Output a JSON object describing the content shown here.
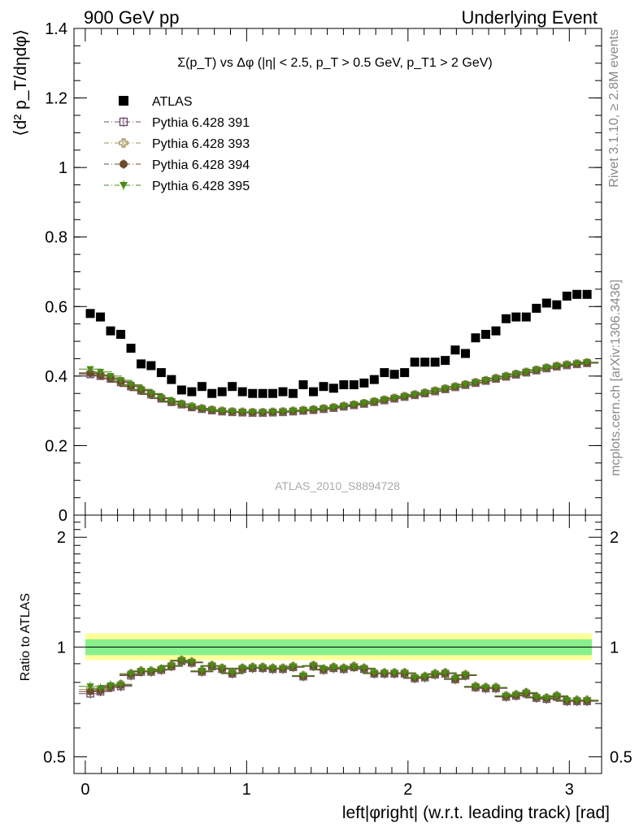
{
  "header": {
    "left": "900 GeV pp",
    "right": "Underlying Event"
  },
  "side_labels": {
    "rivet": "Rivet 3.1.10, ≥ 2.8M events",
    "mcplots": "mcplots.cern.ch [arXiv:1306.3436]"
  },
  "watermark": "ATLAS_2010_S8894728",
  "chart_data": [
    {
      "type": "scatter",
      "title": "Σ(p_T) vs Δφ (|η| < 2.5, p_T > 0.5 GeV, p_T1 > 2 GeV)",
      "ylabel": "⟨d² p_T/dηdφ⟩",
      "xlabel": "left|φright| (w.r.t. leading track) [rad]",
      "xlim": [
        -0.07,
        3.2
      ],
      "ylim": [
        0,
        1.4
      ],
      "yticks": [
        "0",
        "0.2",
        "0.4",
        "0.6",
        "0.8",
        "1",
        "1.2",
        "1.4"
      ],
      "legend_position": "top-left",
      "x": [
        0.031,
        0.094,
        0.157,
        0.22,
        0.283,
        0.346,
        0.408,
        0.471,
        0.534,
        0.597,
        0.66,
        0.723,
        0.785,
        0.848,
        0.911,
        0.974,
        1.037,
        1.1,
        1.162,
        1.225,
        1.288,
        1.351,
        1.414,
        1.477,
        1.539,
        1.602,
        1.665,
        1.728,
        1.791,
        1.854,
        1.916,
        1.979,
        2.042,
        2.105,
        2.168,
        2.231,
        2.293,
        2.356,
        2.419,
        2.482,
        2.545,
        2.608,
        2.67,
        2.733,
        2.796,
        2.859,
        2.922,
        2.985,
        3.047,
        3.11
      ],
      "series": [
        {
          "name": "ATLAS",
          "color": "#000000",
          "marker": "filled-square",
          "values": [
            0.58,
            0.57,
            0.53,
            0.52,
            0.48,
            0.435,
            0.43,
            0.41,
            0.39,
            0.36,
            0.355,
            0.37,
            0.35,
            0.355,
            0.37,
            0.355,
            0.35,
            0.35,
            0.35,
            0.355,
            0.35,
            0.375,
            0.355,
            0.37,
            0.365,
            0.375,
            0.375,
            0.38,
            0.39,
            0.41,
            0.405,
            0.41,
            0.44,
            0.44,
            0.44,
            0.445,
            0.475,
            0.465,
            0.51,
            0.52,
            0.53,
            0.565,
            0.57,
            0.57,
            0.595,
            0.61,
            0.605,
            0.63,
            0.635,
            0.635
          ]
        },
        {
          "name": "Pythia 6.428 391",
          "color": "#6e4d6b",
          "marker": "open-square",
          "values": [
            0.405,
            0.4,
            0.392,
            0.382,
            0.37,
            0.358,
            0.347,
            0.335,
            0.325,
            0.318,
            0.31,
            0.305,
            0.301,
            0.298,
            0.296,
            0.295,
            0.294,
            0.294,
            0.295,
            0.296,
            0.298,
            0.3,
            0.302,
            0.305,
            0.308,
            0.312,
            0.316,
            0.32,
            0.325,
            0.33,
            0.335,
            0.34,
            0.345,
            0.35,
            0.356,
            0.362,
            0.368,
            0.374,
            0.38,
            0.386,
            0.392,
            0.398,
            0.404,
            0.41,
            0.416,
            0.422,
            0.427,
            0.431,
            0.434,
            0.437
          ]
        },
        {
          "name": "Pythia 6.428 393",
          "color": "#a0905a",
          "marker": "open-cross",
          "values": [
            0.41,
            0.404,
            0.395,
            0.385,
            0.373,
            0.361,
            0.349,
            0.338,
            0.328,
            0.32,
            0.313,
            0.307,
            0.303,
            0.3,
            0.298,
            0.297,
            0.296,
            0.296,
            0.297,
            0.298,
            0.3,
            0.302,
            0.304,
            0.307,
            0.31,
            0.314,
            0.318,
            0.322,
            0.327,
            0.332,
            0.337,
            0.342,
            0.347,
            0.352,
            0.358,
            0.364,
            0.37,
            0.376,
            0.382,
            0.388,
            0.394,
            0.4,
            0.406,
            0.412,
            0.418,
            0.424,
            0.429,
            0.433,
            0.436,
            0.439
          ]
        },
        {
          "name": "Pythia 6.428 394",
          "color": "#6b4a2e",
          "marker": "filled-circle",
          "values": [
            0.408,
            0.402,
            0.393,
            0.383,
            0.371,
            0.359,
            0.348,
            0.336,
            0.326,
            0.319,
            0.311,
            0.306,
            0.302,
            0.299,
            0.297,
            0.296,
            0.295,
            0.295,
            0.296,
            0.297,
            0.299,
            0.301,
            0.303,
            0.306,
            0.309,
            0.313,
            0.317,
            0.321,
            0.326,
            0.331,
            0.336,
            0.341,
            0.346,
            0.351,
            0.357,
            0.363,
            0.369,
            0.375,
            0.381,
            0.387,
            0.393,
            0.399,
            0.405,
            0.411,
            0.417,
            0.423,
            0.428,
            0.432,
            0.435,
            0.438
          ]
        },
        {
          "name": "Pythia 6.428 395",
          "color": "#4a8a16",
          "marker": "filled-triangle-down",
          "values": [
            0.42,
            0.412,
            0.4,
            0.388,
            0.375,
            0.362,
            0.35,
            0.338,
            0.328,
            0.32,
            0.313,
            0.307,
            0.303,
            0.3,
            0.298,
            0.297,
            0.296,
            0.296,
            0.297,
            0.298,
            0.3,
            0.302,
            0.304,
            0.307,
            0.31,
            0.314,
            0.318,
            0.322,
            0.327,
            0.332,
            0.337,
            0.342,
            0.347,
            0.352,
            0.358,
            0.364,
            0.37,
            0.376,
            0.382,
            0.388,
            0.394,
            0.4,
            0.406,
            0.412,
            0.418,
            0.424,
            0.429,
            0.433,
            0.436,
            0.44
          ]
        }
      ]
    },
    {
      "type": "scatter",
      "ylabel": "Ratio to ATLAS",
      "xlabel": "left|φright| (w.r.t. leading track) [rad]",
      "xlim": [
        -0.07,
        3.2
      ],
      "ylim": [
        0.45,
        2.3
      ],
      "ylog": true,
      "yticks": [
        "0.5",
        "1",
        "2"
      ],
      "xticks": [
        "0",
        "1",
        "2",
        "3"
      ],
      "band_green": [
        0.95,
        1.05
      ],
      "band_yellow": [
        0.92,
        1.09
      ],
      "reference_line": 1,
      "series": [
        {
          "name": "Pythia 6.428 391",
          "color": "#6e4d6b",
          "marker": "open-square",
          "values": [
            0.745,
            0.755,
            0.775,
            0.78,
            0.835,
            0.855,
            0.855,
            0.865,
            0.885,
            0.915,
            0.905,
            0.855,
            0.885,
            0.87,
            0.845,
            0.87,
            0.875,
            0.875,
            0.87,
            0.87,
            0.88,
            0.83,
            0.885,
            0.865,
            0.875,
            0.87,
            0.88,
            0.87,
            0.845,
            0.845,
            0.845,
            0.845,
            0.82,
            0.825,
            0.84,
            0.845,
            0.815,
            0.835,
            0.775,
            0.77,
            0.77,
            0.73,
            0.735,
            0.745,
            0.725,
            0.72,
            0.73,
            0.71,
            0.71,
            0.71
          ]
        },
        {
          "name": "Pythia 6.428 393",
          "color": "#a0905a",
          "marker": "open-cross",
          "values": [
            0.765,
            0.765,
            0.78,
            0.79,
            0.845,
            0.86,
            0.86,
            0.87,
            0.89,
            0.92,
            0.91,
            0.86,
            0.89,
            0.875,
            0.85,
            0.875,
            0.88,
            0.88,
            0.875,
            0.875,
            0.885,
            0.835,
            0.89,
            0.87,
            0.88,
            0.875,
            0.885,
            0.875,
            0.85,
            0.85,
            0.85,
            0.85,
            0.825,
            0.83,
            0.845,
            0.85,
            0.82,
            0.84,
            0.78,
            0.775,
            0.775,
            0.735,
            0.74,
            0.75,
            0.73,
            0.725,
            0.735,
            0.715,
            0.715,
            0.715
          ]
        },
        {
          "name": "Pythia 6.428 394",
          "color": "#6b4a2e",
          "marker": "filled-circle",
          "values": [
            0.755,
            0.76,
            0.778,
            0.785,
            0.84,
            0.857,
            0.857,
            0.867,
            0.887,
            0.917,
            0.907,
            0.857,
            0.887,
            0.872,
            0.847,
            0.872,
            0.877,
            0.877,
            0.872,
            0.872,
            0.882,
            0.832,
            0.887,
            0.867,
            0.877,
            0.872,
            0.882,
            0.872,
            0.847,
            0.847,
            0.847,
            0.847,
            0.822,
            0.827,
            0.842,
            0.847,
            0.817,
            0.837,
            0.777,
            0.772,
            0.772,
            0.732,
            0.737,
            0.747,
            0.727,
            0.722,
            0.732,
            0.712,
            0.712,
            0.712
          ]
        },
        {
          "name": "Pythia 6.428 395",
          "color": "#4a8a16",
          "marker": "filled-triangle-down",
          "values": [
            0.78,
            0.77,
            0.785,
            0.79,
            0.845,
            0.86,
            0.86,
            0.87,
            0.89,
            0.92,
            0.91,
            0.86,
            0.89,
            0.875,
            0.85,
            0.875,
            0.88,
            0.88,
            0.875,
            0.875,
            0.885,
            0.835,
            0.89,
            0.87,
            0.88,
            0.875,
            0.885,
            0.875,
            0.85,
            0.85,
            0.85,
            0.85,
            0.825,
            0.83,
            0.845,
            0.85,
            0.82,
            0.84,
            0.78,
            0.775,
            0.775,
            0.735,
            0.74,
            0.75,
            0.73,
            0.725,
            0.735,
            0.715,
            0.715,
            0.715
          ]
        }
      ]
    }
  ]
}
